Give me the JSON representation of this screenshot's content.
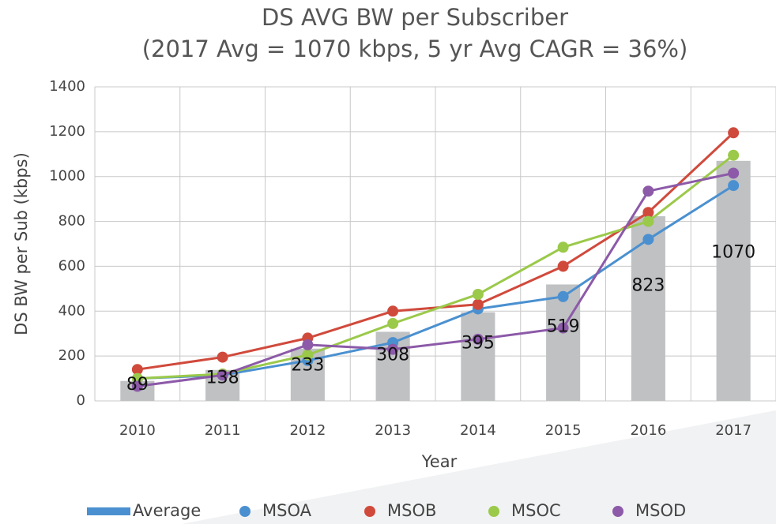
{
  "chart_data": {
    "type": "bar_line",
    "title": "DS AVG BW per Subscriber",
    "subtitle": "(2017 Avg = 1070 kbps, 5 yr Avg CAGR = 36%)",
    "x_label": "Year",
    "y_label": "DS BW per Sub (kbps)",
    "categories": [
      "2010",
      "2011",
      "2012",
      "2013",
      "2014",
      "2015",
      "2016",
      "2017"
    ],
    "ylim": [
      0,
      1400
    ],
    "yticks": [
      0,
      200,
      400,
      600,
      800,
      1000,
      1200,
      1400
    ],
    "grid": true,
    "bar": {
      "name": "Average",
      "color": "#bfc1c3",
      "legend_color": "#4a90d0",
      "values": [
        89,
        138,
        233,
        308,
        395,
        519,
        823,
        1070
      ]
    },
    "series": [
      {
        "name": "MSOA",
        "color": "#4a90d0",
        "values": [
          100,
          115,
          180,
          260,
          410,
          465,
          720,
          960
        ]
      },
      {
        "name": "MSOB",
        "color": "#d04a3c",
        "values": [
          140,
          195,
          280,
          400,
          430,
          600,
          840,
          1195
        ]
      },
      {
        "name": "MSOC",
        "color": "#9bc94a",
        "values": [
          100,
          120,
          205,
          345,
          475,
          685,
          800,
          1095
        ]
      },
      {
        "name": "MSOD",
        "color": "#8c5aa8",
        "values": [
          65,
          115,
          250,
          230,
          275,
          325,
          935,
          1015
        ]
      }
    ]
  }
}
